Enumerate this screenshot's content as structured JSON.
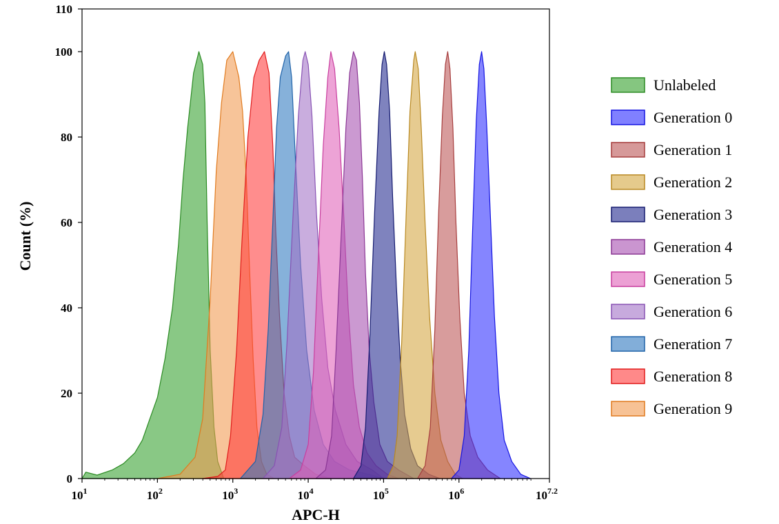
{
  "chart_data": {
    "type": "area",
    "title": "",
    "xlabel": "APC-H",
    "ylabel": "Count (%)",
    "xscale": "log",
    "xlim": [
      1,
      7.2
    ],
    "ylim": [
      0,
      110
    ],
    "x_ticks": [
      {
        "base": "10",
        "exp": "1",
        "value": 1
      },
      {
        "base": "10",
        "exp": "2",
        "value": 2
      },
      {
        "base": "10",
        "exp": "3",
        "value": 3
      },
      {
        "base": "10",
        "exp": "4",
        "value": 4
      },
      {
        "base": "10",
        "exp": "5",
        "value": 5
      },
      {
        "base": "10",
        "exp": "6",
        "value": 6
      },
      {
        "base": "10",
        "exp": "7.2",
        "value": 7.2
      }
    ],
    "y_ticks": [
      {
        "label": "0",
        "value": 0
      },
      {
        "label": "20",
        "value": 20
      },
      {
        "label": "40",
        "value": 40
      },
      {
        "label": "60",
        "value": 60
      },
      {
        "label": "80",
        "value": 80
      },
      {
        "label": "100",
        "value": 100
      },
      {
        "label": "110",
        "value": 110
      }
    ],
    "grid": false,
    "legend_position": "right",
    "series": [
      {
        "name": "Unlabeled",
        "color": "#34a02c",
        "stroke": "#2a8a22",
        "points": [
          [
            1.0,
            0
          ],
          [
            1.05,
            1.5
          ],
          [
            1.2,
            0.8
          ],
          [
            1.4,
            2
          ],
          [
            1.55,
            3.5
          ],
          [
            1.7,
            6
          ],
          [
            1.8,
            9
          ],
          [
            1.9,
            14
          ],
          [
            2.0,
            19
          ],
          [
            2.1,
            28
          ],
          [
            2.2,
            40
          ],
          [
            2.28,
            55
          ],
          [
            2.34,
            70
          ],
          [
            2.4,
            82
          ],
          [
            2.48,
            95
          ],
          [
            2.55,
            100
          ],
          [
            2.6,
            97
          ],
          [
            2.63,
            88
          ],
          [
            2.66,
            60
          ],
          [
            2.7,
            30
          ],
          [
            2.75,
            12
          ],
          [
            2.8,
            4
          ],
          [
            2.88,
            0
          ]
        ]
      },
      {
        "name": "Generation 9",
        "color": "#f29a4f",
        "stroke": "#e07a1e",
        "points": [
          [
            2.0,
            0
          ],
          [
            2.3,
            1
          ],
          [
            2.5,
            5
          ],
          [
            2.6,
            14
          ],
          [
            2.7,
            42
          ],
          [
            2.78,
            72
          ],
          [
            2.85,
            88
          ],
          [
            2.92,
            98
          ],
          [
            3.0,
            100
          ],
          [
            3.08,
            94
          ],
          [
            3.13,
            86
          ],
          [
            3.18,
            70
          ],
          [
            3.22,
            50
          ],
          [
            3.27,
            28
          ],
          [
            3.32,
            12
          ],
          [
            3.38,
            4
          ],
          [
            3.45,
            1
          ],
          [
            3.55,
            0
          ]
        ]
      },
      {
        "name": "Generation 8",
        "color": "#ff3b3b",
        "stroke": "#e01b1b",
        "points": [
          [
            2.6,
            0
          ],
          [
            2.8,
            0.5
          ],
          [
            2.9,
            2
          ],
          [
            2.97,
            10
          ],
          [
            3.05,
            30
          ],
          [
            3.12,
            55
          ],
          [
            3.2,
            80
          ],
          [
            3.28,
            94
          ],
          [
            3.35,
            98
          ],
          [
            3.42,
            100
          ],
          [
            3.48,
            95
          ],
          [
            3.53,
            78
          ],
          [
            3.57,
            58
          ],
          [
            3.62,
            38
          ],
          [
            3.68,
            20
          ],
          [
            3.75,
            10
          ],
          [
            3.82,
            5
          ],
          [
            3.95,
            3
          ],
          [
            4.1,
            1
          ],
          [
            4.3,
            0
          ]
        ]
      },
      {
        "name": "Generation 7",
        "color": "#2f78c0",
        "stroke": "#1f62a8",
        "points": [
          [
            3.1,
            0
          ],
          [
            3.3,
            4
          ],
          [
            3.4,
            15
          ],
          [
            3.47,
            35
          ],
          [
            3.53,
            60
          ],
          [
            3.58,
            82
          ],
          [
            3.63,
            94
          ],
          [
            3.7,
            99
          ],
          [
            3.74,
            100
          ],
          [
            3.78,
            94
          ],
          [
            3.83,
            75
          ],
          [
            3.9,
            50
          ],
          [
            3.98,
            30
          ],
          [
            4.08,
            16
          ],
          [
            4.2,
            8
          ],
          [
            4.35,
            4
          ],
          [
            4.55,
            2
          ],
          [
            4.8,
            1
          ],
          [
            5.0,
            0
          ]
        ]
      },
      {
        "name": "Generation 6",
        "color": "#a272c6",
        "stroke": "#8852b3",
        "points": [
          [
            3.4,
            0
          ],
          [
            3.55,
            3
          ],
          [
            3.65,
            12
          ],
          [
            3.72,
            32
          ],
          [
            3.8,
            62
          ],
          [
            3.87,
            85
          ],
          [
            3.93,
            98
          ],
          [
            3.96,
            100
          ],
          [
            4.0,
            97
          ],
          [
            4.05,
            85
          ],
          [
            4.11,
            62
          ],
          [
            4.18,
            42
          ],
          [
            4.26,
            26
          ],
          [
            4.36,
            16
          ],
          [
            4.5,
            8
          ],
          [
            4.65,
            4
          ],
          [
            4.85,
            2
          ],
          [
            5.0,
            0
          ]
        ]
      },
      {
        "name": "Generation 5",
        "color": "#e060b8",
        "stroke": "#c83e9e",
        "points": [
          [
            3.75,
            0
          ],
          [
            3.9,
            2
          ],
          [
            4.0,
            8
          ],
          [
            4.07,
            25
          ],
          [
            4.13,
            50
          ],
          [
            4.2,
            78
          ],
          [
            4.26,
            94
          ],
          [
            4.3,
            100
          ],
          [
            4.35,
            96
          ],
          [
            4.41,
            82
          ],
          [
            4.47,
            62
          ],
          [
            4.53,
            40
          ],
          [
            4.6,
            22
          ],
          [
            4.68,
            12
          ],
          [
            4.78,
            6
          ],
          [
            4.9,
            3
          ],
          [
            5.05,
            1
          ],
          [
            5.2,
            0
          ]
        ]
      },
      {
        "name": "Generation 4",
        "color": "#a64fb0",
        "stroke": "#8a3694",
        "points": [
          [
            4.1,
            0
          ],
          [
            4.23,
            2
          ],
          [
            4.31,
            10
          ],
          [
            4.37,
            30
          ],
          [
            4.44,
            58
          ],
          [
            4.5,
            82
          ],
          [
            4.55,
            95
          ],
          [
            4.6,
            100
          ],
          [
            4.64,
            98
          ],
          [
            4.68,
            88
          ],
          [
            4.72,
            70
          ],
          [
            4.76,
            48
          ],
          [
            4.81,
            30
          ],
          [
            4.87,
            18
          ],
          [
            4.95,
            8
          ],
          [
            5.05,
            4
          ],
          [
            5.2,
            2
          ],
          [
            5.4,
            0
          ]
        ]
      },
      {
        "name": "Generation 3",
        "color": "#232a8f",
        "stroke": "#141a6f",
        "points": [
          [
            4.6,
            0
          ],
          [
            4.7,
            3
          ],
          [
            4.76,
            12
          ],
          [
            4.82,
            34
          ],
          [
            4.88,
            62
          ],
          [
            4.94,
            86
          ],
          [
            4.98,
            97
          ],
          [
            5.01,
            100
          ],
          [
            5.04,
            97
          ],
          [
            5.08,
            86
          ],
          [
            5.12,
            66
          ],
          [
            5.17,
            45
          ],
          [
            5.22,
            28
          ],
          [
            5.28,
            15
          ],
          [
            5.36,
            7
          ],
          [
            5.45,
            3
          ],
          [
            5.6,
            1
          ],
          [
            5.75,
            0
          ]
        ]
      },
      {
        "name": "Generation 2",
        "color": "#d4a640",
        "stroke": "#b88820",
        "points": [
          [
            5.05,
            0
          ],
          [
            5.13,
            3
          ],
          [
            5.18,
            10
          ],
          [
            5.24,
            32
          ],
          [
            5.3,
            62
          ],
          [
            5.35,
            86
          ],
          [
            5.4,
            98
          ],
          [
            5.42,
            100
          ],
          [
            5.46,
            96
          ],
          [
            5.5,
            82
          ],
          [
            5.55,
            60
          ],
          [
            5.61,
            38
          ],
          [
            5.68,
            20
          ],
          [
            5.76,
            9
          ],
          [
            5.85,
            4
          ],
          [
            5.95,
            1
          ],
          [
            6.05,
            0
          ]
        ]
      },
      {
        "name": "Generation 1",
        "color": "#bb5555",
        "stroke": "#a63d3d",
        "points": [
          [
            5.45,
            0
          ],
          [
            5.55,
            3
          ],
          [
            5.62,
            12
          ],
          [
            5.68,
            35
          ],
          [
            5.73,
            62
          ],
          [
            5.78,
            85
          ],
          [
            5.82,
            97
          ],
          [
            5.85,
            100
          ],
          [
            5.88,
            96
          ],
          [
            5.92,
            82
          ],
          [
            5.96,
            60
          ],
          [
            6.01,
            38
          ],
          [
            6.07,
            20
          ],
          [
            6.15,
            10
          ],
          [
            6.25,
            5
          ],
          [
            6.38,
            2
          ],
          [
            6.55,
            0
          ]
        ]
      },
      {
        "name": "Generation 0",
        "color": "#2c2cff",
        "stroke": "#1414e0",
        "points": [
          [
            5.9,
            0
          ],
          [
            6.0,
            2
          ],
          [
            6.07,
            10
          ],
          [
            6.13,
            30
          ],
          [
            6.18,
            58
          ],
          [
            6.23,
            84
          ],
          [
            6.27,
            97
          ],
          [
            6.3,
            100
          ],
          [
            6.33,
            96
          ],
          [
            6.37,
            82
          ],
          [
            6.42,
            60
          ],
          [
            6.47,
            38
          ],
          [
            6.53,
            20
          ],
          [
            6.6,
            9
          ],
          [
            6.7,
            4
          ],
          [
            6.82,
            1
          ],
          [
            6.95,
            0
          ]
        ]
      }
    ],
    "legend": [
      {
        "name": "Unlabeled",
        "color": "#34a02c",
        "stroke": "#2a8a22"
      },
      {
        "name": "Generation 0",
        "color": "#2c2cff",
        "stroke": "#1414e0"
      },
      {
        "name": "Generation 1",
        "color": "#bb5555",
        "stroke": "#a63d3d"
      },
      {
        "name": "Generation 2",
        "color": "#d4a640",
        "stroke": "#b88820"
      },
      {
        "name": "Generation 3",
        "color": "#232a8f",
        "stroke": "#141a6f"
      },
      {
        "name": "Generation 4",
        "color": "#a64fb0",
        "stroke": "#8a3694"
      },
      {
        "name": "Generation 5",
        "color": "#e060b8",
        "stroke": "#c83e9e"
      },
      {
        "name": "Generation 6",
        "color": "#a272c6",
        "stroke": "#8852b3"
      },
      {
        "name": "Generation 7",
        "color": "#2f78c0",
        "stroke": "#1f62a8"
      },
      {
        "name": "Generation 8",
        "color": "#ff3b3b",
        "stroke": "#e01b1b"
      },
      {
        "name": "Generation 9",
        "color": "#f29a4f",
        "stroke": "#e07a1e"
      }
    ]
  }
}
